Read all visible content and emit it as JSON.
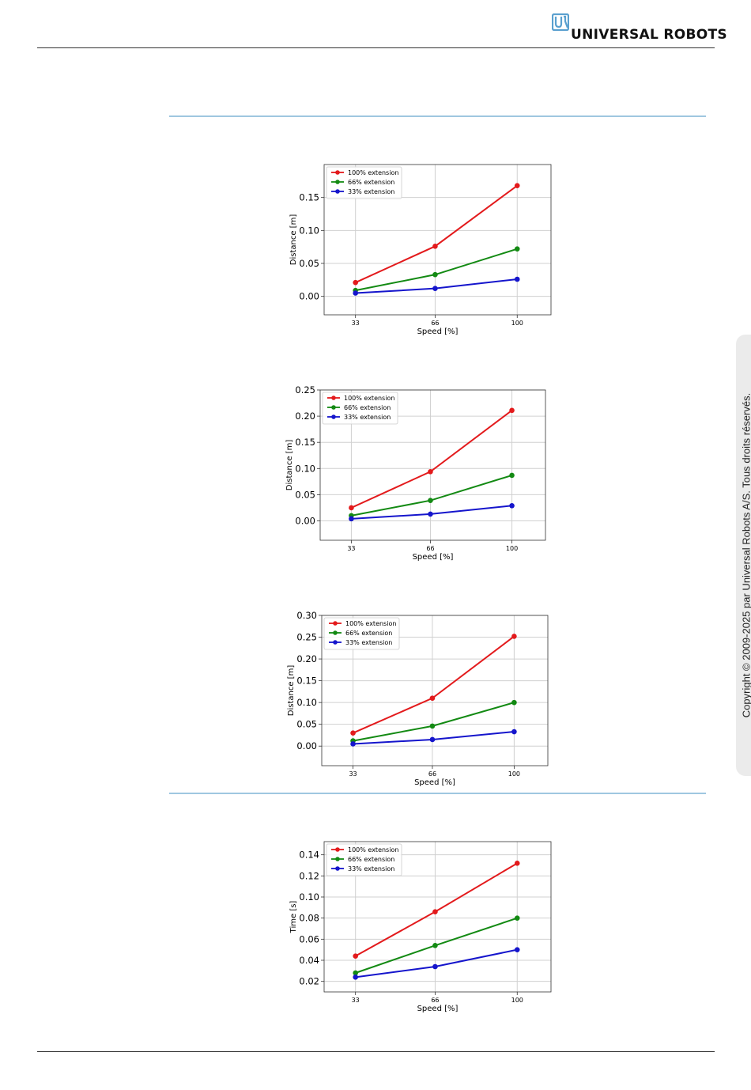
{
  "header": {
    "brand": "UNIVERSAL ROBOTS"
  },
  "sidebar": {
    "copyright": "Copyright © 2009-2025 par Universal Robots A/S. Tous droits réservés."
  },
  "colors": {
    "series": [
      "#e31a1c",
      "#138a13",
      "#1515cc"
    ],
    "rule": "#9fc7e0",
    "logo": "#5aa0cf"
  },
  "chart_data": [
    {
      "type": "line",
      "xlabel": "Speed [%]",
      "ylabel": "Distance [m]",
      "x": [
        33,
        66,
        100
      ],
      "xlim": [
        20,
        114
      ],
      "ylim": [
        -0.028,
        0.2
      ],
      "yticks": [
        0.0,
        0.05,
        0.1,
        0.15
      ],
      "ytick_labels": [
        "0.00",
        "0.05",
        "0.10",
        "0.15"
      ],
      "xtick_labels": [
        "33",
        "66",
        "100"
      ],
      "grid": true,
      "legend": "top-left",
      "series": [
        {
          "name": "100% extension",
          "values": [
            0.021,
            0.076,
            0.168
          ]
        },
        {
          "name": "66% extension",
          "values": [
            0.009,
            0.033,
            0.072
          ]
        },
        {
          "name": "33% extension",
          "values": [
            0.005,
            0.012,
            0.026
          ]
        }
      ]
    },
    {
      "type": "line",
      "xlabel": "Speed [%]",
      "ylabel": "Distance [m]",
      "x": [
        33,
        66,
        100
      ],
      "xlim": [
        20,
        114
      ],
      "ylim": [
        -0.037,
        0.25
      ],
      "yticks": [
        0.0,
        0.05,
        0.1,
        0.15,
        0.2,
        0.25
      ],
      "ytick_labels": [
        "0.00",
        "0.05",
        "0.10",
        "0.15",
        "0.20",
        "0.25"
      ],
      "xtick_labels": [
        "33",
        "66",
        "100"
      ],
      "grid": true,
      "legend": "top-left",
      "series": [
        {
          "name": "100% extension",
          "values": [
            0.025,
            0.094,
            0.211
          ]
        },
        {
          "name": "66% extension",
          "values": [
            0.01,
            0.039,
            0.087
          ]
        },
        {
          "name": "33% extension",
          "values": [
            0.004,
            0.013,
            0.029
          ]
        }
      ]
    },
    {
      "type": "line",
      "xlabel": "Speed [%]",
      "ylabel": "Distance [m]",
      "x": [
        33,
        66,
        100
      ],
      "xlim": [
        20,
        114
      ],
      "ylim": [
        -0.045,
        0.3
      ],
      "yticks": [
        0.0,
        0.05,
        0.1,
        0.15,
        0.2,
        0.25,
        0.3
      ],
      "ytick_labels": [
        "0.00",
        "0.05",
        "0.10",
        "0.15",
        "0.20",
        "0.25",
        "0.30"
      ],
      "xtick_labels": [
        "33",
        "66",
        "100"
      ],
      "grid": true,
      "legend": "top-left",
      "series": [
        {
          "name": "100% extension",
          "values": [
            0.03,
            0.11,
            0.252
          ]
        },
        {
          "name": "66% extension",
          "values": [
            0.012,
            0.046,
            0.1
          ]
        },
        {
          "name": "33% extension",
          "values": [
            0.005,
            0.015,
            0.033
          ]
        }
      ]
    },
    {
      "type": "line",
      "xlabel": "Speed [%]",
      "ylabel": "Time [s]",
      "x": [
        33,
        66,
        100
      ],
      "xlim": [
        20,
        114
      ],
      "ylim": [
        0.01,
        0.1525
      ],
      "yticks": [
        0.02,
        0.04,
        0.06,
        0.08,
        0.1,
        0.12,
        0.14
      ],
      "ytick_labels": [
        "0.02",
        "0.04",
        "0.06",
        "0.08",
        "0.10",
        "0.12",
        "0.14"
      ],
      "xtick_labels": [
        "33",
        "66",
        "100"
      ],
      "grid": true,
      "legend": "top-left",
      "series": [
        {
          "name": "100% extension",
          "values": [
            0.044,
            0.086,
            0.132
          ]
        },
        {
          "name": "66% extension",
          "values": [
            0.028,
            0.054,
            0.08
          ]
        },
        {
          "name": "33% extension",
          "values": [
            0.024,
            0.034,
            0.05
          ]
        }
      ]
    }
  ]
}
